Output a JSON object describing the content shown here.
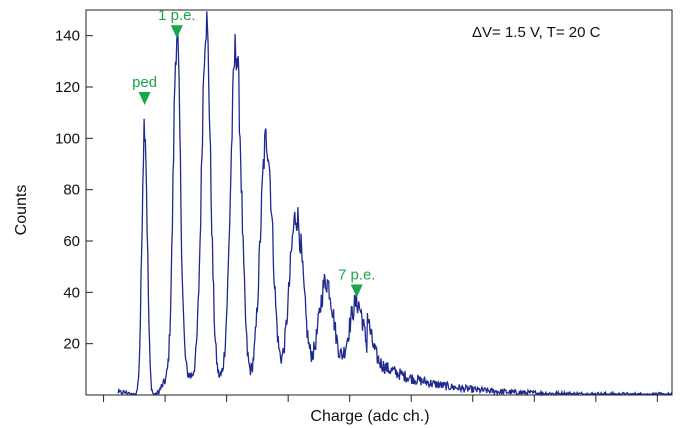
{
  "chart_data": {
    "type": "line",
    "title": "",
    "xlabel": "Charge (adc ch.)",
    "ylabel": "Counts",
    "xlim": [
      0,
      100
    ],
    "ylim": [
      0,
      150
    ],
    "x_ticks_labeled": false,
    "y_ticks": [
      20,
      40,
      60,
      80,
      100,
      120,
      140
    ],
    "conditions_label": "ΔV= 1.5 V,  T= 20 C",
    "line_color": "#1f2a8f",
    "annotation_color": "#1aa64a",
    "peaks": [
      {
        "x": 10.0,
        "y": 107,
        "width": 0.45
      },
      {
        "x": 15.5,
        "y": 132,
        "width": 0.6
      },
      {
        "x": 20.5,
        "y": 140,
        "width": 0.75
      },
      {
        "x": 25.6,
        "y": 131,
        "width": 0.9
      },
      {
        "x": 30.8,
        "y": 97,
        "width": 1.05
      },
      {
        "x": 35.9,
        "y": 68,
        "width": 1.2
      },
      {
        "x": 41.0,
        "y": 43,
        "width": 1.35
      },
      {
        "x": 46.2,
        "y": 35,
        "width": 1.5
      }
    ],
    "annotations": [
      {
        "label": "ped",
        "x": 10.0,
        "y": 113
      },
      {
        "label": "1 p.e.",
        "x": 15.5,
        "y": 139
      },
      {
        "label": "7 p.e.",
        "x": 46.2,
        "y": 38
      }
    ]
  }
}
